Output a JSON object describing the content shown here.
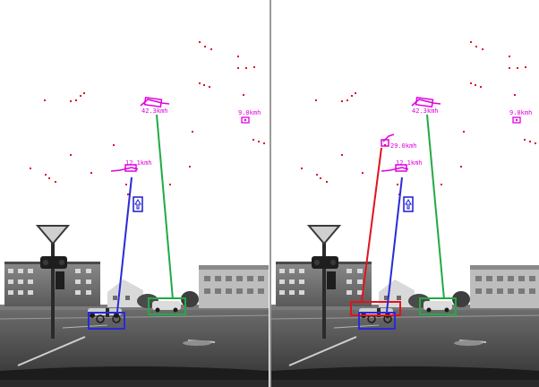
{
  "colors": {
    "background": "#ffffff",
    "panel_divider": "#9a9a9a",
    "feature_points": "#e0102a",
    "speed_glyph": "#e000e0",
    "track_blue": "#2a2ad8",
    "track_green": "#22aa44",
    "track_red": "#e0141e",
    "sign_glyph": "#1a1ad0"
  },
  "panels": [
    {
      "id": "left",
      "speed_labels": [
        "42.3kmh",
        "12.1kmh",
        "9.0kmh"
      ],
      "tracks": [
        {
          "color_key": "track_green",
          "label_ref": 0
        },
        {
          "color_key": "track_blue",
          "label_ref": 1
        }
      ]
    },
    {
      "id": "right",
      "speed_labels": [
        "42.3kmh",
        "29.0kmh",
        "12.1kmh",
        "9.0kmh"
      ],
      "tracks": [
        {
          "color_key": "track_green",
          "label_ref": 0
        },
        {
          "color_key": "track_red",
          "label_ref": 1
        },
        {
          "color_key": "track_blue",
          "label_ref": 2
        }
      ]
    }
  ],
  "icons": {
    "speed_glyph": "car-motion-icon",
    "sign_glyph": "arrow-sign-icon"
  }
}
